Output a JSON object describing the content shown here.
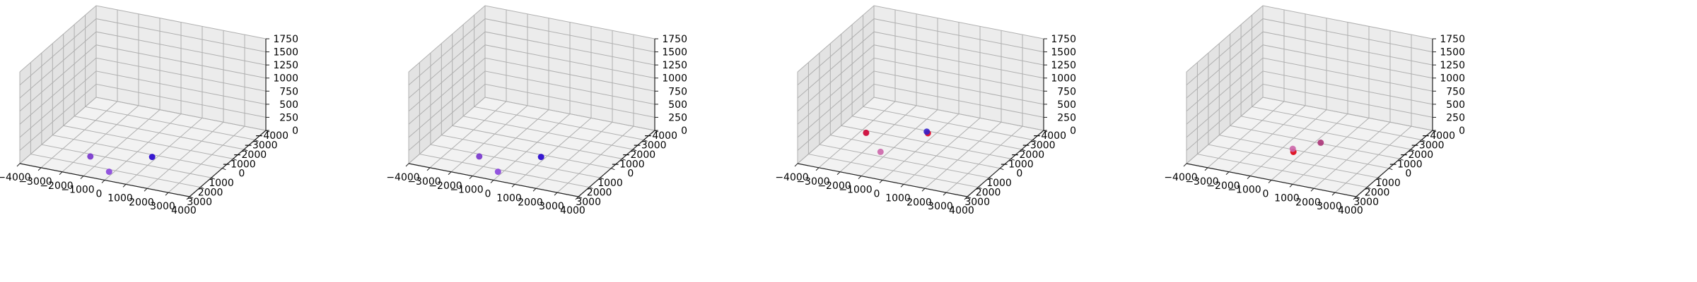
{
  "chart_data": [
    {
      "type": "scatter3d",
      "xlim": [
        -4000,
        4000
      ],
      "ylim": [
        -4000,
        3000
      ],
      "zlim": [
        0,
        1750
      ],
      "xticks": [
        "−4000",
        "−3000",
        "−2000",
        "−1000",
        "0",
        "1000",
        "2000",
        "3000",
        "4000"
      ],
      "yticks": [
        "−4000",
        "−3000",
        "−2000",
        "−1000",
        "0",
        "1000",
        "2000",
        "3000"
      ],
      "zticks": [
        "0",
        "250",
        "500",
        "750",
        "1000",
        "1250",
        "1500",
        "1750"
      ],
      "grid": true,
      "points": [
        {
          "x": -1600,
          "y": 1200,
          "z": 0,
          "color": "#7733cc"
        },
        {
          "x": -200,
          "y": 2200,
          "z": 0,
          "color": "#8844dd"
        },
        {
          "x": 800,
          "y": 200,
          "z": 0,
          "color": "#2200cc"
        }
      ]
    },
    {
      "type": "scatter3d",
      "xlim": [
        -4000,
        4000
      ],
      "ylim": [
        -4000,
        3000
      ],
      "zlim": [
        0,
        1750
      ],
      "xticks": [
        "−4000",
        "−3000",
        "−2000",
        "−1000",
        "0",
        "1000",
        "2000",
        "3000",
        "4000"
      ],
      "yticks": [
        "−4000",
        "−3000",
        "−2000",
        "−1000",
        "0",
        "1000",
        "2000",
        "3000"
      ],
      "zticks": [
        "0",
        "250",
        "500",
        "750",
        "1000",
        "1250",
        "1500",
        "1750"
      ],
      "grid": true,
      "points": [
        {
          "x": -1600,
          "y": 1200,
          "z": 0,
          "color": "#7733cc"
        },
        {
          "x": -200,
          "y": 2200,
          "z": 0,
          "color": "#8844dd"
        },
        {
          "x": 800,
          "y": 200,
          "z": 0,
          "color": "#2200cc"
        }
      ]
    },
    {
      "type": "scatter3d",
      "xlim": [
        -4000,
        4000
      ],
      "ylim": [
        -4000,
        3000
      ],
      "zlim": [
        0,
        1750
      ],
      "xticks": [
        "−4000",
        "−3000",
        "−2000",
        "−1000",
        "0",
        "1000",
        "2000",
        "3000",
        "4000"
      ],
      "yticks": [
        "−4000",
        "−3000",
        "−2000",
        "−1000",
        "0",
        "1000",
        "2000",
        "3000"
      ],
      "zticks": [
        "0",
        "250",
        "500",
        "750",
        "1000",
        "1250",
        "1500",
        "1750"
      ],
      "grid": true,
      "points": [
        {
          "x": -1800,
          "y": 1000,
          "z": 400,
          "color": "#cc0033"
        },
        {
          "x": -400,
          "y": 2400,
          "z": 400,
          "color": "#cc66aa"
        },
        {
          "x": 600,
          "y": 0,
          "z": 400,
          "color": "#dd0022"
        },
        {
          "x": 600,
          "y": 100,
          "z": 450,
          "color": "#3322cc"
        }
      ]
    },
    {
      "type": "scatter3d",
      "xlim": [
        -4000,
        4000
      ],
      "ylim": [
        -4000,
        3000
      ],
      "zlim": [
        0,
        1750
      ],
      "xticks": [
        "−4000",
        "−3000",
        "−2000",
        "−1000",
        "0",
        "1000",
        "2000",
        "3000",
        "4000"
      ],
      "yticks": [
        "−4000",
        "−3000",
        "−2000",
        "−1000",
        "0",
        "1000",
        "2000",
        "3000"
      ],
      "zticks": [
        "0",
        "250",
        "500",
        "750",
        "1000",
        "1250",
        "1500",
        "1750"
      ],
      "grid": true,
      "points": [
        {
          "x": -400,
          "y": 200,
          "z": 0,
          "color": "#dd0011"
        },
        {
          "x": 600,
          "y": 2200,
          "z": 500,
          "color": "#cc66aa"
        },
        {
          "x": 1400,
          "y": 1200,
          "z": 500,
          "color": "#aa3377"
        }
      ]
    }
  ]
}
